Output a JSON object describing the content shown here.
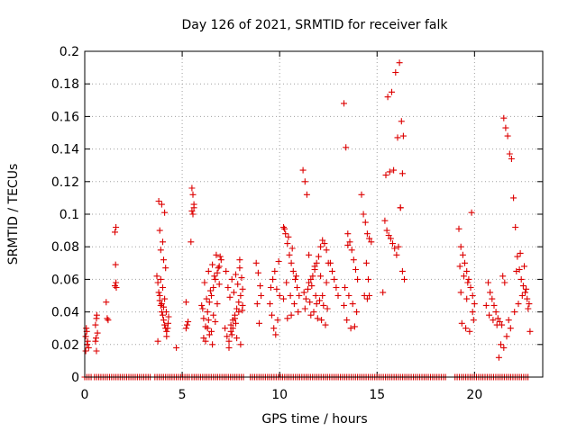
{
  "chart_data": {
    "type": "scatter",
    "title": "Day 126 of 2021, SRMTID for receiver falk",
    "xlabel": "GPS time / hours",
    "ylabel": "SRMTID / TECUs",
    "xlim": [
      0,
      23.5
    ],
    "ylim": [
      0,
      0.2
    ],
    "xticks": [
      0,
      5,
      10,
      15,
      20
    ],
    "xtick_labels": [
      "0",
      "5",
      "10",
      "15",
      "20"
    ],
    "yticks": [
      0,
      0.02,
      0.04,
      0.06,
      0.08,
      0.1,
      0.12,
      0.14,
      0.16,
      0.18,
      0.2
    ],
    "ytick_labels": [
      "0",
      "0.02",
      "0.04",
      "0.06",
      "0.08",
      "0.1",
      "0.12",
      "0.14",
      "0.16",
      "0.18",
      "0.2"
    ],
    "grid": true,
    "marker": "+",
    "color": "#dd0000",
    "zero_ranges": [
      [
        0,
        0.4
      ],
      [
        0.5,
        3.4
      ],
      [
        3.6,
        5.4
      ],
      [
        5.5,
        8.2
      ],
      [
        8.5,
        18.6
      ],
      [
        19.0,
        22.8
      ]
    ],
    "zero_step": 0.11,
    "series": [
      {
        "name": "SRMTID",
        "x": [
          0.05,
          0.08,
          0.12,
          0.15,
          0.2,
          0.05,
          0.1,
          0.55,
          0.6,
          0.6,
          0.65,
          0.55,
          0.58,
          0.62,
          1.1,
          1.15,
          1.2,
          1.55,
          1.6,
          1.58,
          1.55,
          1.6,
          1.62,
          3.7,
          3.75,
          3.8,
          3.85,
          3.9,
          3.95,
          4.0,
          4.05,
          4.1,
          4.15,
          4.2,
          3.8,
          3.95,
          4.1,
          3.85,
          4.0,
          3.9,
          4.05,
          4.15,
          3.9,
          4.0,
          3.85,
          4.1,
          3.95,
          4.05,
          3.75,
          4.2,
          4.25,
          4.3,
          4.28,
          4.18,
          4.7,
          5.2,
          5.3,
          5.5,
          5.55,
          5.6,
          5.5,
          5.6,
          5.55,
          5.45,
          5.2,
          5.25,
          6.0,
          6.1,
          6.2,
          6.3,
          6.4,
          6.5,
          6.6,
          6.7,
          6.8,
          6.9,
          7.0,
          6.15,
          6.35,
          6.55,
          6.75,
          6.45,
          6.25,
          6.65,
          6.85,
          6.05,
          6.95,
          6.3,
          6.5,
          6.7,
          6.6,
          6.4,
          6.2,
          6.8,
          6.1,
          6.9,
          6.35,
          6.55,
          7.2,
          7.3,
          7.4,
          7.5,
          7.6,
          7.7,
          7.8,
          7.9,
          8.0,
          8.1,
          7.35,
          7.55,
          7.75,
          7.95,
          7.45,
          7.65,
          7.85,
          8.05,
          7.25,
          7.5,
          7.7,
          7.9,
          8.1,
          7.6,
          7.8,
          8.0,
          7.4,
          7.55,
          7.75,
          7.95,
          8.08,
          8.8,
          8.9,
          9.0,
          9.05,
          8.85,
          8.95,
          9.5,
          9.6,
          9.7,
          9.8,
          9.9,
          10.0,
          9.55,
          9.65,
          9.75,
          9.85,
          9.95,
          10.2,
          10.3,
          10.4,
          10.5,
          10.6,
          10.7,
          10.8,
          10.9,
          11.0,
          10.25,
          10.45,
          10.65,
          10.85,
          10.35,
          10.55,
          10.75,
          10.95,
          10.2,
          10.4,
          10.6,
          11.2,
          11.3,
          11.4,
          11.5,
          11.6,
          11.7,
          11.8,
          11.9,
          12.0,
          12.1,
          12.2,
          12.3,
          12.4,
          12.5,
          11.25,
          11.45,
          11.65,
          11.85,
          12.05,
          12.25,
          12.45,
          11.35,
          11.55,
          11.75,
          11.95,
          12.15,
          12.35,
          11.5,
          11.8,
          12.1,
          12.4,
          11.3,
          11.6,
          11.9,
          12.2,
          12.6,
          12.7,
          12.8,
          12.9,
          13.0,
          13.3,
          13.4,
          13.5,
          13.6,
          13.7,
          13.8,
          13.9,
          14.0,
          13.35,
          13.55,
          13.75,
          13.95,
          13.45,
          13.65,
          13.85,
          13.3,
          13.5,
          14.2,
          14.3,
          14.4,
          14.5,
          14.6,
          14.7,
          14.45,
          14.55,
          14.35,
          14.5,
          14.6,
          15.3,
          15.4,
          15.5,
          15.6,
          15.7,
          15.8,
          15.9,
          16.0,
          16.1,
          16.2,
          16.3,
          16.4,
          15.45,
          15.65,
          15.85,
          16.05,
          16.25,
          15.55,
          15.75,
          15.95,
          16.15,
          16.35,
          16.2,
          16.3,
          19.2,
          19.3,
          19.4,
          19.5,
          19.6,
          19.7,
          19.8,
          19.9,
          20.0,
          19.25,
          19.45,
          19.65,
          19.85,
          19.35,
          19.55,
          19.75,
          19.95,
          19.3,
          19.6,
          19.9,
          20.6,
          20.7,
          20.8,
          20.9,
          21.0,
          21.1,
          21.2,
          21.3,
          21.4,
          21.5,
          21.6,
          21.7,
          21.8,
          21.9,
          22.0,
          22.1,
          22.2,
          22.3,
          22.4,
          22.5,
          22.6,
          22.7,
          22.8,
          21.45,
          21.55,
          21.35,
          21.5,
          21.65,
          21.85,
          22.05,
          22.25,
          22.45,
          22.65,
          20.75,
          20.95,
          21.15,
          22.15,
          22.35,
          22.55,
          22.75,
          22.85,
          21.25,
          21.75
        ],
        "y": [
          0.025,
          0.03,
          0.02,
          0.022,
          0.018,
          0.016,
          0.028,
          0.022,
          0.016,
          0.036,
          0.027,
          0.032,
          0.024,
          0.038,
          0.046,
          0.036,
          0.035,
          0.089,
          0.092,
          0.069,
          0.056,
          0.058,
          0.055,
          0.062,
          0.058,
          0.052,
          0.047,
          0.044,
          0.04,
          0.038,
          0.035,
          0.032,
          0.03,
          0.028,
          0.108,
          0.106,
          0.101,
          0.09,
          0.083,
          0.078,
          0.072,
          0.067,
          0.06,
          0.055,
          0.05,
          0.048,
          0.045,
          0.043,
          0.022,
          0.025,
          0.03,
          0.037,
          0.033,
          0.04,
          0.018,
          0.046,
          0.034,
          0.116,
          0.112,
          0.106,
          0.102,
          0.104,
          0.1,
          0.083,
          0.03,
          0.032,
          0.044,
          0.036,
          0.031,
          0.04,
          0.046,
          0.05,
          0.055,
          0.06,
          0.064,
          0.068,
          0.072,
          0.058,
          0.065,
          0.069,
          0.075,
          0.053,
          0.048,
          0.062,
          0.067,
          0.042,
          0.074,
          0.03,
          0.028,
          0.034,
          0.038,
          0.026,
          0.022,
          0.045,
          0.024,
          0.057,
          0.035,
          0.02,
          0.03,
          0.025,
          0.022,
          0.028,
          0.035,
          0.038,
          0.042,
          0.046,
          0.05,
          0.054,
          0.055,
          0.06,
          0.063,
          0.067,
          0.049,
          0.052,
          0.057,
          0.061,
          0.065,
          0.032,
          0.036,
          0.04,
          0.044,
          0.03,
          0.024,
          0.02,
          0.018,
          0.026,
          0.033,
          0.072,
          0.041,
          0.07,
          0.064,
          0.056,
          0.05,
          0.045,
          0.033,
          0.045,
          0.038,
          0.03,
          0.026,
          0.035,
          0.05,
          0.055,
          0.06,
          0.065,
          0.054,
          0.071,
          0.092,
          0.088,
          0.082,
          0.075,
          0.07,
          0.065,
          0.06,
          0.055,
          0.05,
          0.091,
          0.086,
          0.079,
          0.062,
          0.058,
          0.05,
          0.045,
          0.04,
          0.048,
          0.036,
          0.038,
          0.127,
          0.12,
          0.112,
          0.058,
          0.06,
          0.062,
          0.066,
          0.07,
          0.074,
          0.08,
          0.084,
          0.082,
          0.078,
          0.07,
          0.052,
          0.054,
          0.056,
          0.05,
          0.047,
          0.044,
          0.042,
          0.048,
          0.046,
          0.04,
          0.036,
          0.035,
          0.032,
          0.075,
          0.068,
          0.062,
          0.058,
          0.042,
          0.038,
          0.045,
          0.05,
          0.07,
          0.065,
          0.06,
          0.055,
          0.05,
          0.168,
          0.141,
          0.088,
          0.083,
          0.078,
          0.072,
          0.066,
          0.06,
          0.055,
          0.05,
          0.045,
          0.04,
          0.035,
          0.03,
          0.031,
          0.044,
          0.081,
          0.112,
          0.1,
          0.095,
          0.088,
          0.085,
          0.083,
          0.07,
          0.06,
          0.05,
          0.048,
          0.05,
          0.052,
          0.096,
          0.09,
          0.087,
          0.085,
          0.082,
          0.079,
          0.075,
          0.08,
          0.104,
          0.065,
          0.06,
          0.124,
          0.126,
          0.127,
          0.147,
          0.157,
          0.172,
          0.175,
          0.187,
          0.193,
          0.148,
          0.104,
          0.125,
          0.091,
          0.08,
          0.075,
          0.07,
          0.065,
          0.06,
          0.055,
          0.05,
          0.045,
          0.068,
          0.062,
          0.058,
          0.101,
          0.033,
          0.03,
          0.028,
          0.035,
          0.052,
          0.048,
          0.04,
          0.044,
          0.058,
          0.052,
          0.048,
          0.044,
          0.04,
          0.036,
          0.034,
          0.032,
          0.159,
          0.153,
          0.148,
          0.137,
          0.134,
          0.11,
          0.092,
          0.074,
          0.066,
          0.06,
          0.056,
          0.052,
          0.048,
          0.045,
          0.062,
          0.058,
          0.02,
          0.018,
          0.025,
          0.03,
          0.04,
          0.045,
          0.05,
          0.054,
          0.038,
          0.035,
          0.032,
          0.065,
          0.076,
          0.068,
          0.042,
          0.028,
          0.012,
          0.035
        ]
      }
    ]
  }
}
